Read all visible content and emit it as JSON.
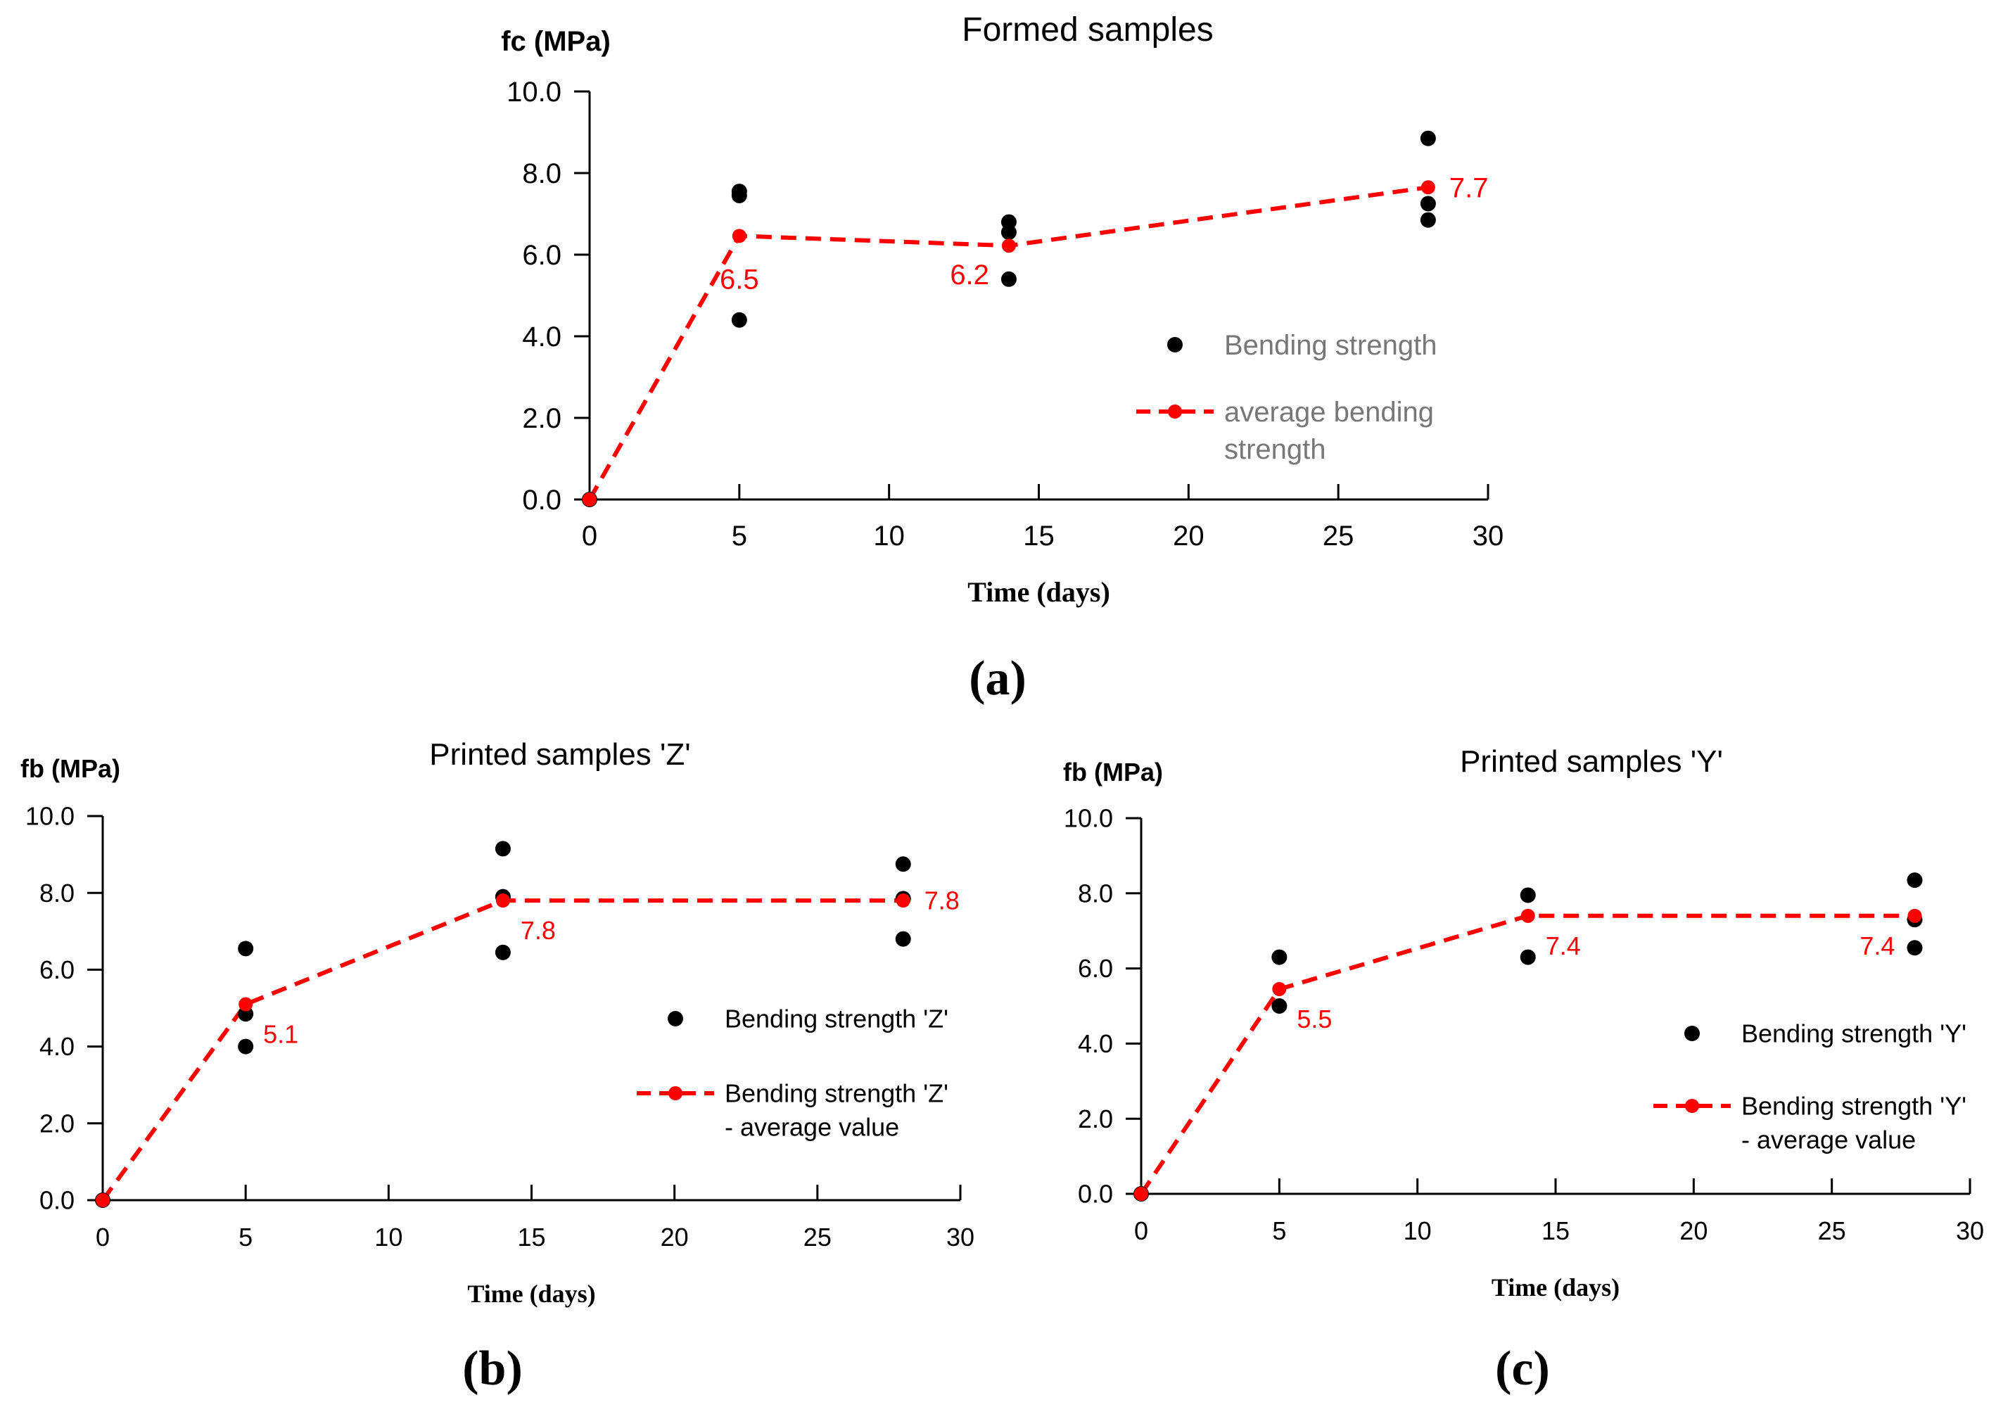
{
  "figure": {
    "panel_labels": [
      "(a)",
      "(b)",
      "(c)"
    ]
  },
  "chart_data": [
    {
      "type": "scatter",
      "title": "Formed samples",
      "ylabel": "fc (MPa)",
      "xlabel": "Time (days)",
      "xlim": [
        0,
        30
      ],
      "ylim": [
        0,
        10
      ],
      "xticks": [
        0,
        5,
        10,
        15,
        20,
        25,
        30
      ],
      "yticks": [
        0,
        2,
        4,
        6,
        8,
        10
      ],
      "xtick_labels": [
        "0",
        "5",
        "10",
        "15",
        "20",
        "25",
        "30"
      ],
      "ytick_labels": [
        "0.0",
        "2.0",
        "4.0",
        "6.0",
        "8.0",
        "10.0"
      ],
      "legend_position": "right",
      "series": [
        {
          "name": "Bending strength",
          "kind": "scatter",
          "color": "#000000",
          "points": [
            [
              0,
              0
            ],
            [
              5,
              7.55
            ],
            [
              5,
              7.45
            ],
            [
              5,
              4.4
            ],
            [
              14,
              6.8
            ],
            [
              14,
              6.55
            ],
            [
              14,
              5.4
            ],
            [
              28,
              8.85
            ],
            [
              28,
              7.25
            ],
            [
              28,
              6.85
            ]
          ]
        },
        {
          "name": "average bending strength",
          "kind": "line",
          "color": "#ff0000",
          "points": [
            [
              0,
              0
            ],
            [
              5,
              6.46
            ],
            [
              14,
              6.22
            ],
            [
              28,
              7.65
            ]
          ],
          "labels": [
            null,
            "6.5",
            "6.2",
            "7.7"
          ],
          "label_pos": [
            null,
            "below",
            "left",
            "right"
          ]
        }
      ]
    },
    {
      "type": "scatter",
      "title": "Printed samples 'Z'",
      "ylabel": "fb (MPa)",
      "xlabel": "Time (days)",
      "xlim": [
        0,
        30
      ],
      "ylim": [
        0,
        10
      ],
      "xticks": [
        0,
        5,
        10,
        15,
        20,
        25,
        30
      ],
      "yticks": [
        0,
        2,
        4,
        6,
        8,
        10
      ],
      "xtick_labels": [
        "0",
        "5",
        "10",
        "15",
        "20",
        "25",
        "30"
      ],
      "ytick_labels": [
        "0.0",
        "2.0",
        "4.0",
        "6.0",
        "8.0",
        "10.0"
      ],
      "legend_position": "right",
      "series": [
        {
          "name": "Bending strength 'Z'",
          "kind": "scatter",
          "color": "#000000",
          "points": [
            [
              0,
              0
            ],
            [
              5,
              6.55
            ],
            [
              5,
              4.85
            ],
            [
              5,
              4.0
            ],
            [
              14,
              9.15
            ],
            [
              14,
              7.9
            ],
            [
              14,
              6.45
            ],
            [
              28,
              8.75
            ],
            [
              28,
              7.85
            ],
            [
              28,
              6.8
            ]
          ]
        },
        {
          "name": "Bending strength 'Z' - average value",
          "kind": "line",
          "color": "#ff0000",
          "points": [
            [
              0,
              0
            ],
            [
              5,
              5.1
            ],
            [
              14,
              7.8
            ],
            [
              28,
              7.8
            ]
          ],
          "labels": [
            null,
            "5.1",
            "7.8",
            "7.8"
          ],
          "label_pos": [
            null,
            "below-right",
            "below-right",
            "right"
          ]
        }
      ]
    },
    {
      "type": "scatter",
      "title": "Printed samples 'Y'",
      "ylabel": "fb (MPa)",
      "xlabel": "Time (days)",
      "xlim": [
        0,
        30
      ],
      "ylim": [
        0,
        10
      ],
      "xticks": [
        0,
        5,
        10,
        15,
        20,
        25,
        30
      ],
      "yticks": [
        0,
        2,
        4,
        6,
        8,
        10
      ],
      "xtick_labels": [
        "0",
        "5",
        "10",
        "15",
        "20",
        "25",
        "30"
      ],
      "ytick_labels": [
        "0.0",
        "2.0",
        "4.0",
        "6.0",
        "8.0",
        "10.0"
      ],
      "legend_position": "right",
      "series": [
        {
          "name": "Bending strength 'Y'",
          "kind": "scatter",
          "color": "#000000",
          "points": [
            [
              0,
              0
            ],
            [
              5,
              6.3
            ],
            [
              5,
              5.0
            ],
            [
              14,
              7.95
            ],
            [
              14,
              6.3
            ],
            [
              28,
              8.35
            ],
            [
              28,
              7.3
            ],
            [
              28,
              6.55
            ]
          ]
        },
        {
          "name": "Bending strength 'Y' - average value",
          "kind": "line",
          "color": "#ff0000",
          "points": [
            [
              0,
              0
            ],
            [
              5,
              5.45
            ],
            [
              14,
              7.4
            ],
            [
              28,
              7.4
            ]
          ],
          "labels": [
            null,
            "5.5",
            "7.4",
            "7.4"
          ],
          "label_pos": [
            null,
            "below-right",
            "below-right",
            "left"
          ]
        }
      ]
    }
  ]
}
